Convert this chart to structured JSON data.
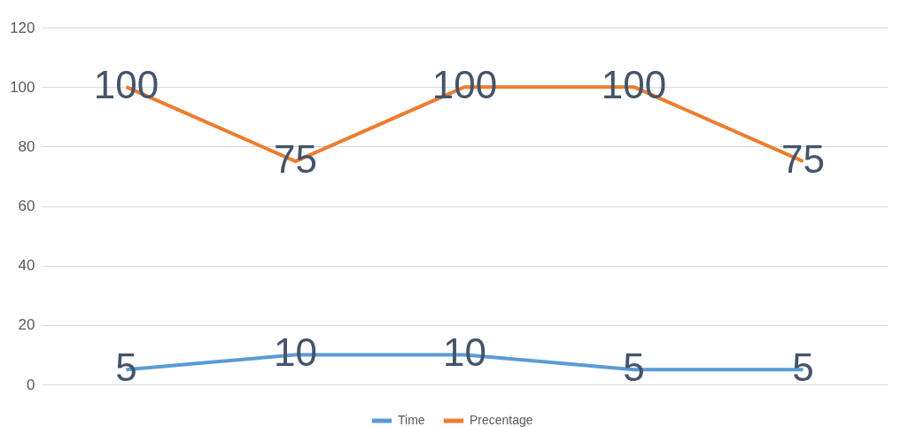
{
  "chart_data": {
    "type": "line",
    "categories": [
      null,
      null,
      null,
      null,
      null
    ],
    "series": [
      {
        "name": "Time",
        "color": "#5b9bd5",
        "values": [
          5,
          10,
          10,
          5,
          5
        ]
      },
      {
        "name": "Precentage",
        "color": "#ed7d31",
        "values": [
          100,
          75,
          100,
          100,
          75
        ]
      }
    ],
    "ylim": [
      0,
      120
    ],
    "yticks": [
      0,
      20,
      40,
      60,
      80,
      100,
      120
    ],
    "grid": "y",
    "legend": "bottom",
    "data_labels": true,
    "tick_labels": "y",
    "marker": "none",
    "line_style": "solid"
  }
}
